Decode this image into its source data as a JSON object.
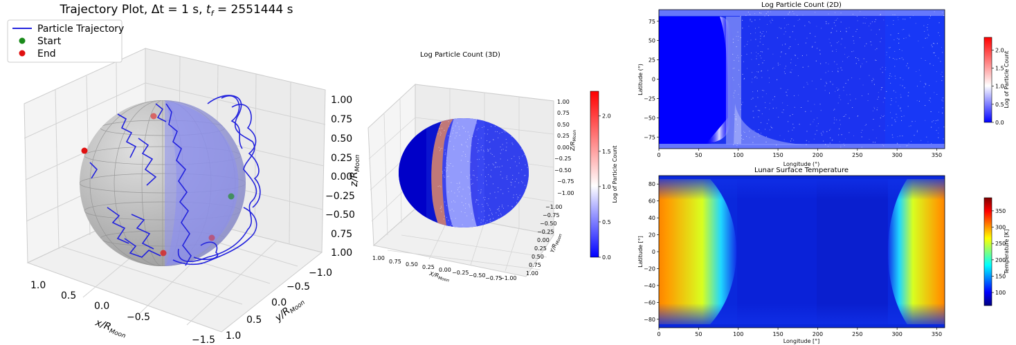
{
  "chart_data": [
    {
      "type": "line",
      "projection": "3d",
      "title": "Trajectory Plot, Δt = 1 s, t_f = 2551444 s",
      "title_parts": {
        "main": "Trajectory Plot, ",
        "dt": "Δt = 1 s, ",
        "tf": "t",
        "tf_sub": "f",
        "tf_rest": " = 2551444 s"
      },
      "xlabel": "x/R_Moon",
      "ylabel": "y/R_Moon",
      "zlabel": "z/R_Moon",
      "axis_label_parts": {
        "x": {
          "base": "x/R",
          "sub": "Moon"
        },
        "y": {
          "base": "y/R",
          "sub": "Moon"
        },
        "z": {
          "base": "z/R",
          "sub": "Moon"
        }
      },
      "x_ticks": [
        "1.0",
        "0.5",
        "0.0",
        "−0.5",
        "−1.5"
      ],
      "y_ticks": [
        "−1.0",
        "−0.5",
        "0.0",
        "0.5",
        "1.0"
      ],
      "z_ticks": [
        "1.00",
        "0.75",
        "0.50",
        "0.25",
        "0.00",
        "−0.25",
        "−0.50",
        "0.75",
        "1.00"
      ],
      "legend": {
        "placement": "top-left",
        "entries": [
          {
            "label": "Particle Trajectory",
            "color": "#2222dd",
            "marker": "line"
          },
          {
            "label": "Start",
            "color": "#1a8a1a",
            "marker": "dot"
          },
          {
            "label": "End",
            "color": "#e01010",
            "marker": "dot"
          }
        ]
      },
      "series": [
        {
          "name": "Particle Trajectory",
          "color": "#2222dd"
        },
        {
          "name": "Start",
          "color": "#1a8a1a"
        },
        {
          "name": "End",
          "color": "#e01010"
        }
      ],
      "grid": true
    },
    {
      "type": "scatter",
      "projection": "3d",
      "title": "Log Particle Count (3D)",
      "xlabel": "X/R_Moon",
      "ylabel": "Y/R_Moon",
      "zlabel": "Z/R_Moon",
      "axis_label_parts": {
        "x": {
          "base": "X/R",
          "sub": "Moon"
        },
        "y": {
          "base": "Y/R",
          "sub": "Moon"
        },
        "z": {
          "base": "Z/R",
          "sub": "Moon"
        }
      },
      "x_ticks": [
        "1.00",
        "0.75",
        "0.50",
        "0.25",
        "0.00",
        "−0.25",
        "−0.50",
        "−0.75",
        "−1.00"
      ],
      "y_ticks": [
        "−1.00",
        "−0.75",
        "−0.50",
        "−0.25",
        "0.00",
        "0.25",
        "0.50",
        "0.75",
        "1.00"
      ],
      "z_ticks": [
        "1.00",
        "0.75",
        "0.50",
        "0.25",
        "0.00",
        "−0.25",
        "−0.50",
        "−0.75",
        "−1.00"
      ],
      "colorbar": {
        "label": "Log of Particle Count",
        "ticks": [
          "0.0",
          "0.5",
          "1.0",
          "1.5",
          "2.0"
        ],
        "range": [
          0,
          2.35
        ],
        "colormap": "bwr"
      },
      "grid": true
    },
    {
      "type": "heatmap",
      "title": "Log Particle Count (2D)",
      "xlabel": "Longitude (°)",
      "ylabel": "Latitude (°)",
      "xlim": [
        0,
        360
      ],
      "ylim": [
        -90,
        90
      ],
      "x_ticks": [
        "0",
        "50",
        "100",
        "150",
        "200",
        "250",
        "300",
        "350"
      ],
      "y_ticks": [
        "75",
        "50",
        "25",
        "0",
        "−25",
        "−50",
        "−75"
      ],
      "colorbar": {
        "label": "Log of Particle Count",
        "ticks": [
          "0.0",
          "0.5",
          "1.0",
          "1.5",
          "2.0"
        ],
        "range": [
          0,
          2.35
        ],
        "colormap": "bwr"
      }
    },
    {
      "type": "heatmap",
      "title": "Lunar Surface Temperature",
      "xlabel": "Longitude [°]",
      "ylabel": "Latitude [°]",
      "xlim": [
        0,
        360
      ],
      "ylim": [
        -90,
        90
      ],
      "x_ticks": [
        "0",
        "50",
        "100",
        "150",
        "200",
        "250",
        "300",
        "350"
      ],
      "y_ticks": [
        "80",
        "60",
        "40",
        "20",
        "0",
        "−20",
        "−40",
        "−60",
        "−80"
      ],
      "colorbar": {
        "label": "Temperature [K]",
        "ticks": [
          "100",
          "150",
          "200",
          "250",
          "300",
          "350"
        ],
        "range": [
          60,
          390
        ],
        "colormap": "jet"
      }
    }
  ]
}
